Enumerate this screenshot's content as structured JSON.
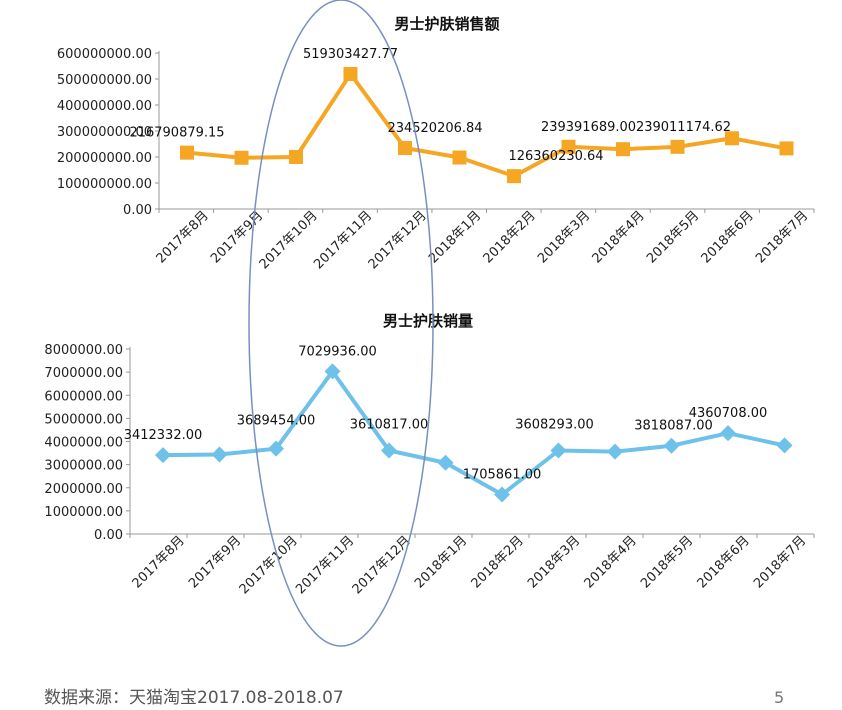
{
  "colors": {
    "sales_line": "#F5A623",
    "volume_line": "#6EC1E8",
    "axis": "#999999",
    "ellipse": "#7A8FC0"
  },
  "footer": {
    "source": "数据来源：天猫淘宝2017.08-2018.07",
    "page_number": "5"
  },
  "chart_data": [
    {
      "type": "line",
      "title": "男士护肤销售额",
      "categories": [
        "2017年8月",
        "2017年9月",
        "2017年10月",
        "2017年11月",
        "2017年12月",
        "2018年1月",
        "2018年2月",
        "2018年3月",
        "2018年4月",
        "2018年5月",
        "2018年6月",
        "2018年7月"
      ],
      "values": [
        216790879.15,
        197000000,
        200000000,
        519303427.77,
        234520206.84,
        198000000,
        126360230.64,
        239391689.0,
        230000000,
        239011174.62,
        272000000,
        233000000
      ],
      "data_labels": [
        "216790879.15",
        "",
        "",
        "519303427.77",
        "234520206.84",
        "",
        "126360230.64",
        "239391689.00",
        "",
        "239011174.62",
        "",
        ""
      ],
      "yticks": [
        "0.00",
        "100000000.00",
        "200000000.00",
        "300000000.00",
        "400000000.00",
        "500000000.00",
        "600000000.00"
      ],
      "ylim": [
        0,
        600000000
      ],
      "marker": "square",
      "grid": false,
      "legend": "none"
    },
    {
      "type": "line",
      "title": "男士护肤销量",
      "categories": [
        "2017年8月",
        "2017年9月",
        "2017年10月",
        "2017年11月",
        "2017年12月",
        "2018年1月",
        "2018年2月",
        "2018年3月",
        "2018年4月",
        "2018年5月",
        "2018年6月",
        "2018年7月"
      ],
      "values": [
        3412332.0,
        3440000,
        3689454.0,
        7029936.0,
        3610817.0,
        3080000,
        1705861.0,
        3608293.0,
        3560000,
        3818087.0,
        4360708.0,
        3830000
      ],
      "data_labels": [
        "3412332.00",
        "",
        "3689454.00",
        "7029936.00",
        "3610817.00",
        "",
        "1705861.00",
        "3608293.00",
        "",
        "3818087.00",
        "4360708.00",
        ""
      ],
      "yticks": [
        "0.00",
        "1000000.00",
        "2000000.00",
        "3000000.00",
        "4000000.00",
        "5000000.00",
        "6000000.00",
        "7000000.00",
        "8000000.00"
      ],
      "ylim": [
        0,
        8000000
      ],
      "marker": "diamond",
      "grid": false,
      "legend": "none"
    }
  ]
}
